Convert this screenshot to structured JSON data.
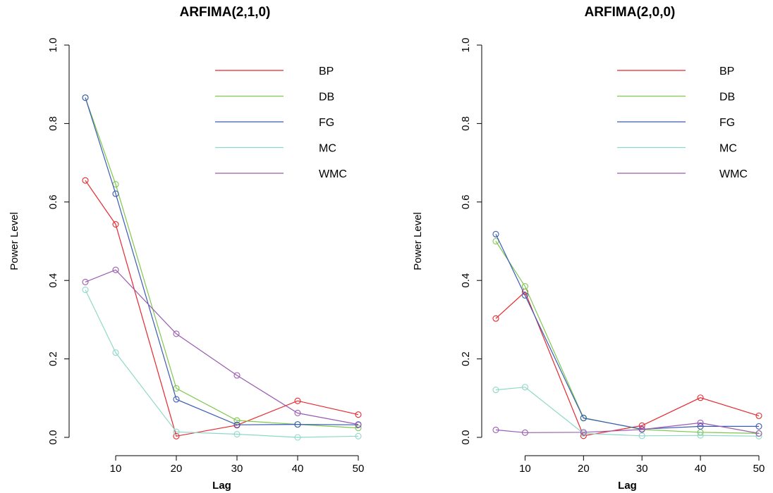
{
  "chart_data": [
    {
      "type": "line",
      "title": "ARFIMA(2,1,0)",
      "xlabel": "Lag",
      "ylabel": "Power Level",
      "x": [
        5,
        10,
        20,
        30,
        40,
        50
      ],
      "x_ticks": [
        10,
        20,
        30,
        40,
        50
      ],
      "xlim": [
        5,
        50
      ],
      "ylim": [
        0,
        1
      ],
      "y_ticks": [
        0.0,
        0.2,
        0.4,
        0.6,
        0.8,
        1.0
      ],
      "y_tick_labels": [
        "0.0",
        "0.2",
        "0.4",
        "0.6",
        "0.8",
        "1.0"
      ],
      "grid": false,
      "legend_position": "top-right",
      "series": [
        {
          "name": "BP",
          "color": "#e8272d",
          "values": [
            0.655,
            0.543,
            0.003,
            0.031,
            0.093,
            0.058
          ]
        },
        {
          "name": "DB",
          "color": "#7ec84e",
          "values": [
            0.866,
            0.645,
            0.125,
            0.043,
            0.033,
            0.024
          ]
        },
        {
          "name": "FG",
          "color": "#3a5cb5",
          "values": [
            0.866,
            0.621,
            0.097,
            0.032,
            0.033,
            0.032
          ]
        },
        {
          "name": "MC",
          "color": "#8fd8c8",
          "values": [
            0.376,
            0.216,
            0.014,
            0.008,
            0.0,
            0.003
          ]
        },
        {
          "name": "WMC",
          "color": "#9a5bb0",
          "values": [
            0.396,
            0.427,
            0.264,
            0.158,
            0.062,
            0.033
          ]
        }
      ]
    },
    {
      "type": "line",
      "title": "ARFIMA(2,0,0)",
      "xlabel": "Lag",
      "ylabel": "Power Level",
      "x": [
        5,
        10,
        20,
        30,
        40,
        50
      ],
      "x_ticks": [
        10,
        20,
        30,
        40,
        50
      ],
      "xlim": [
        5,
        50
      ],
      "ylim": [
        0,
        1
      ],
      "y_ticks": [
        0.0,
        0.2,
        0.4,
        0.6,
        0.8,
        1.0
      ],
      "y_tick_labels": [
        "0.0",
        "0.2",
        "0.4",
        "0.6",
        "0.8",
        "1.0"
      ],
      "grid": false,
      "legend_position": "top-right",
      "series": [
        {
          "name": "BP",
          "color": "#e8272d",
          "values": [
            0.303,
            0.371,
            0.004,
            0.03,
            0.101,
            0.055
          ]
        },
        {
          "name": "DB",
          "color": "#7ec84e",
          "values": [
            0.5,
            0.385,
            0.05,
            0.02,
            0.013,
            0.01
          ]
        },
        {
          "name": "FG",
          "color": "#3a5cb5",
          "values": [
            0.518,
            0.362,
            0.049,
            0.021,
            0.028,
            0.028
          ]
        },
        {
          "name": "MC",
          "color": "#8fd8c8",
          "values": [
            0.121,
            0.128,
            0.01,
            0.004,
            0.005,
            0.003
          ]
        },
        {
          "name": "WMC",
          "color": "#9a5bb0",
          "values": [
            0.019,
            0.012,
            0.013,
            0.02,
            0.037,
            0.01
          ]
        }
      ]
    }
  ]
}
